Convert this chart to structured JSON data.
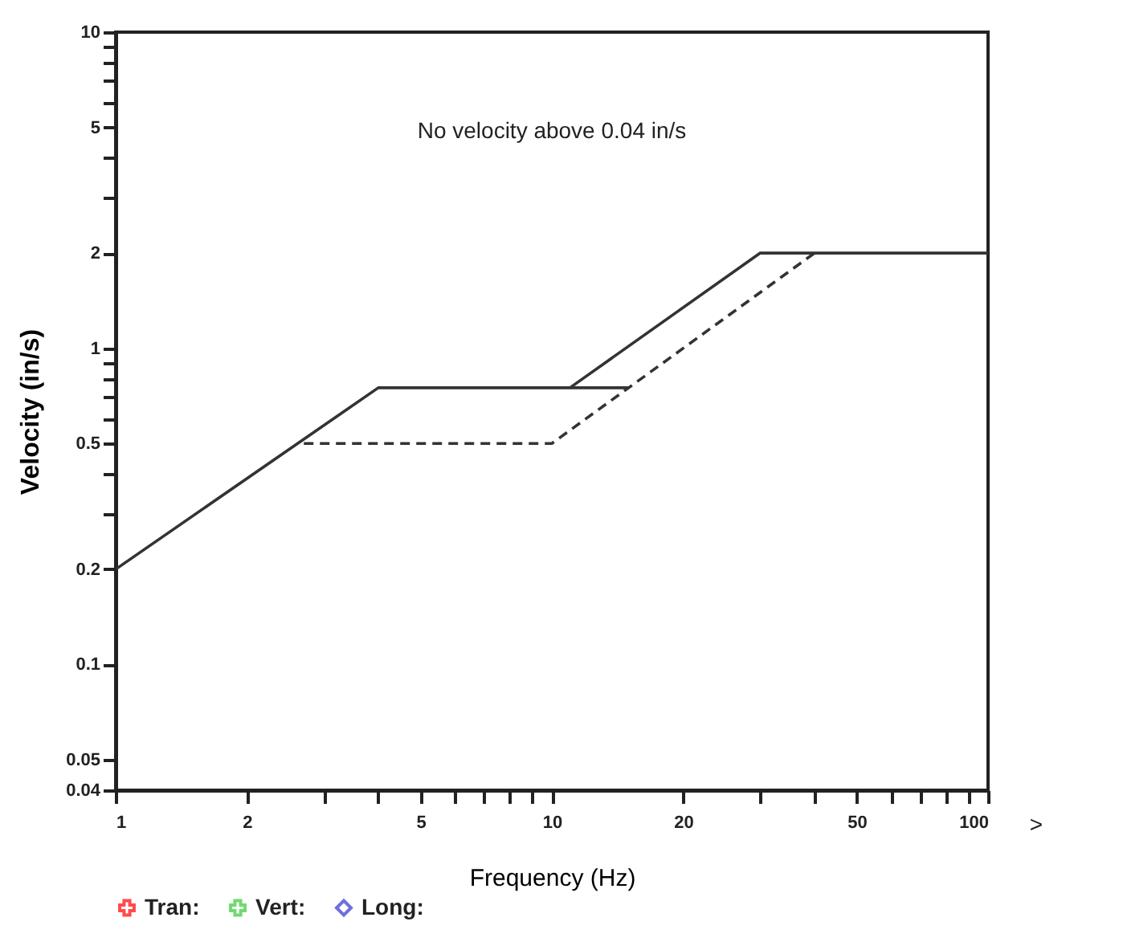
{
  "chart_data": {
    "type": "line",
    "xlabel": "Frequency (Hz)",
    "ylabel": "Velocity (in/s)",
    "annotations": [
      "No velocity above 0.04 in/s",
      ">"
    ],
    "log": "xy",
    "xlim": [
      1,
      100
    ],
    "ylim": [
      0.04,
      10
    ],
    "xticks": [
      1,
      2,
      {
        "value": 3,
        "label": null
      },
      {
        "value": 4,
        "label": null
      },
      5,
      {
        "value": 6,
        "label": null
      },
      {
        "value": 7,
        "label": null
      },
      {
        "value": 8,
        "label": null
      },
      {
        "value": 9,
        "label": null
      },
      10,
      20,
      {
        "value": 30,
        "label": null
      },
      {
        "value": 40,
        "label": null
      },
      50,
      {
        "value": 60,
        "label": null
      },
      {
        "value": 70,
        "label": null
      },
      {
        "value": 80,
        "label": null
      },
      {
        "value": 90,
        "label": null
      },
      100
    ],
    "yticks": [
      0.04,
      0.05,
      0.1,
      0.2,
      {
        "value": 0.3,
        "label": null
      },
      {
        "value": 0.4,
        "label": null
      },
      0.5,
      {
        "value": 0.6,
        "label": null
      },
      {
        "value": 0.7,
        "label": null
      },
      {
        "value": 0.8,
        "label": null
      },
      {
        "value": 0.9,
        "label": null
      },
      1,
      2,
      {
        "value": 3,
        "label": null
      },
      {
        "value": 4,
        "label": null
      },
      5,
      {
        "value": 6,
        "label": null
      },
      {
        "value": 7,
        "label": null
      },
      {
        "value": 8,
        "label": null
      },
      {
        "value": 9,
        "label": null
      },
      10
    ],
    "legend": "bottom",
    "series": [
      {
        "color": "#333333",
        "line_style": "solid",
        "x": [
          1,
          4,
          15
        ],
        "values": [
          0.2,
          0.75,
          0.75
        ]
      },
      {
        "color": "#333333",
        "line_style": "solid",
        "x": [
          11,
          30,
          100
        ],
        "values": [
          0.75,
          2,
          2
        ]
      },
      {
        "color": "#333333",
        "line_style": "dashed",
        "x": [
          2.7,
          10,
          40
        ],
        "values": [
          0.5,
          0.5,
          2
        ]
      },
      {
        "type": "scatter",
        "name": "Tran:",
        "color": "#ff0000",
        "marker": "cross"
      },
      {
        "type": "scatter",
        "name": "Vert:",
        "color": "#33cc33",
        "marker": "cross"
      },
      {
        "type": "scatter",
        "name": "Long:",
        "color": "#3333cc",
        "marker": "diamond"
      }
    ]
  }
}
